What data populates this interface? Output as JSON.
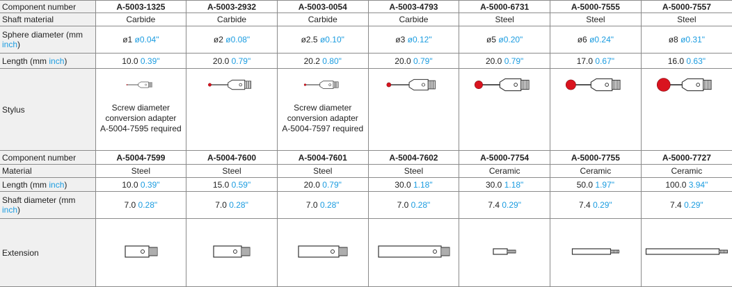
{
  "sections": [
    {
      "header": {
        "label": "Component number",
        "codes": [
          "A-5003-1325",
          "A-5003-2932",
          "A-5003-0054",
          "A-5003-4793",
          "A-5000-6731",
          "A-5000-7555",
          "A-5000-7557"
        ]
      },
      "rows": [
        {
          "label": {
            "text": "Shaft material"
          },
          "cells": [
            {
              "text": "Carbide"
            },
            {
              "text": "Carbide"
            },
            {
              "text": "Carbide"
            },
            {
              "text": "Carbide"
            },
            {
              "text": "Steel"
            },
            {
              "text": "Steel"
            },
            {
              "text": "Steel"
            }
          ]
        },
        {
          "label": {
            "text": "Sphere diameter (mm",
            "unit": "inch",
            "end": ")"
          },
          "cells": [
            {
              "text": "ø1",
              "unit": "ø0.04\""
            },
            {
              "text": "ø2",
              "unit": "ø0.08\""
            },
            {
              "text": "ø2.5",
              "unit": "ø0.10\""
            },
            {
              "text": "ø3",
              "unit": "ø0.12\""
            },
            {
              "text": "ø5",
              "unit": "ø0.20\""
            },
            {
              "text": "ø6",
              "unit": "ø0.24\""
            },
            {
              "text": "ø8",
              "unit": "ø0.31\""
            }
          ]
        },
        {
          "label": {
            "text": "Length (mm",
            "unit": "inch",
            "end": ")"
          },
          "cells": [
            {
              "text": "10.0",
              "unit": "0.39\""
            },
            {
              "text": "20.0",
              "unit": "0.79\""
            },
            {
              "text": "20.2",
              "unit": "0.80\""
            },
            {
              "text": "20.0",
              "unit": "0.79\""
            },
            {
              "text": "20.0",
              "unit": "0.79\""
            },
            {
              "text": "17.0",
              "unit": "0.67\""
            },
            {
              "text": "16.0",
              "unit": "0.63\""
            }
          ]
        },
        {
          "label": {
            "text": "Stylus"
          },
          "image": "stylus",
          "cells": [
            {
              "note": [
                "Screw diameter",
                "conversion adapter",
                "A-5004-7595 required"
              ]
            },
            null,
            {
              "note": [
                "Screw diameter",
                "conversion adapter",
                "A-5004-7597 required"
              ]
            },
            null,
            null,
            null,
            null
          ]
        }
      ]
    },
    {
      "header": {
        "label": "Component number",
        "codes": [
          "A-5004-7599",
          "A-5004-7600",
          "A-5004-7601",
          "A-5004-7602",
          "A-5000-7754",
          "A-5000-7755",
          "A-5000-7727"
        ]
      },
      "rows": [
        {
          "label": {
            "text": "Material"
          },
          "cells": [
            {
              "text": "Steel"
            },
            {
              "text": "Steel"
            },
            {
              "text": "Steel"
            },
            {
              "text": "Steel"
            },
            {
              "text": "Ceramic"
            },
            {
              "text": "Ceramic"
            },
            {
              "text": "Ceramic"
            }
          ]
        },
        {
          "label": {
            "text": "Length (mm",
            "unit": "inch",
            "end": ")"
          },
          "cells": [
            {
              "text": "10.0",
              "unit": "0.39\""
            },
            {
              "text": "15.0",
              "unit": "0.59\""
            },
            {
              "text": "20.0",
              "unit": "0.79\""
            },
            {
              "text": "30.0",
              "unit": "1.18\""
            },
            {
              "text": "30.0",
              "unit": "1.18\""
            },
            {
              "text": "50.0",
              "unit": "1.97\""
            },
            {
              "text": "100.0",
              "unit": "3.94\""
            }
          ]
        },
        {
          "label": {
            "text": "Shaft diameter (mm",
            "unit": "inch",
            "end": ")"
          },
          "cells": [
            {
              "text": "7.0",
              "unit": "0.28\""
            },
            {
              "text": "7.0",
              "unit": "0.28\""
            },
            {
              "text": "7.0",
              "unit": "0.28\""
            },
            {
              "text": "7.0",
              "unit": "0.28\""
            },
            {
              "text": "7.4",
              "unit": "0.29\""
            },
            {
              "text": "7.4",
              "unit": "0.29\""
            },
            {
              "text": "7.4",
              "unit": "0.29\""
            }
          ]
        },
        {
          "label": {
            "text": "Extension"
          },
          "image": "extension",
          "cells": [
            null,
            null,
            null,
            null,
            null,
            null,
            null
          ]
        }
      ]
    }
  ]
}
